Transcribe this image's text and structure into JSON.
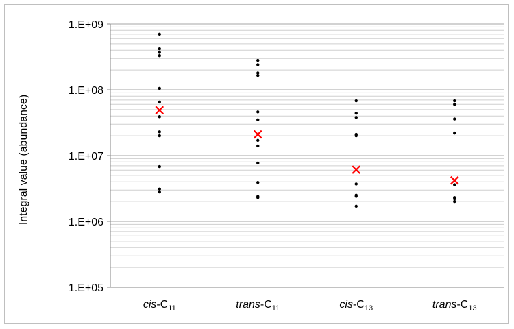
{
  "chart_data": {
    "type": "scatter",
    "title": "",
    "xlabel": "",
    "ylabel": "Integral value (abundance)",
    "yscale": "log",
    "ylim": [
      100000,
      1000000000
    ],
    "y_ticks": [
      {
        "value": 1000000000,
        "label": "1.E+09"
      },
      {
        "value": 100000000,
        "label": "1.E+08"
      },
      {
        "value": 10000000,
        "label": "1.E+07"
      },
      {
        "value": 1000000,
        "label": "1.E+06"
      },
      {
        "value": 100000,
        "label": "1.E+05"
      }
    ],
    "grid": true,
    "legend": "none",
    "categories": [
      {
        "italic": "cis",
        "base": "-C",
        "sub": "11"
      },
      {
        "italic": "trans",
        "base": "-C",
        "sub": "11"
      },
      {
        "italic": "cis",
        "base": "-C",
        "sub": "13"
      },
      {
        "italic": "trans",
        "base": "-C",
        "sub": "13"
      }
    ],
    "series": [
      {
        "marker": "dot",
        "color": "#000000",
        "values": [
          [
            700000000,
            420000000,
            370000000,
            330000000,
            105000000,
            65000000,
            39000000,
            23000000,
            20000000,
            6800000,
            3100000,
            2800000
          ],
          [
            280000000,
            240000000,
            180000000,
            165000000,
            46000000,
            35000000,
            17000000,
            14000000,
            7700000,
            3900000,
            2400000,
            2300000
          ],
          [
            68000000,
            44000000,
            38000000,
            21000000,
            20000000,
            3700000,
            2500000,
            2400000,
            1700000
          ],
          [
            68000000,
            60000000,
            36000000,
            22000000,
            3600000,
            2300000,
            2200000,
            2000000
          ]
        ]
      },
      {
        "marker": "x",
        "color": "#ff0000",
        "values": [
          49000000,
          21000000,
          6100000,
          4200000
        ]
      }
    ]
  }
}
